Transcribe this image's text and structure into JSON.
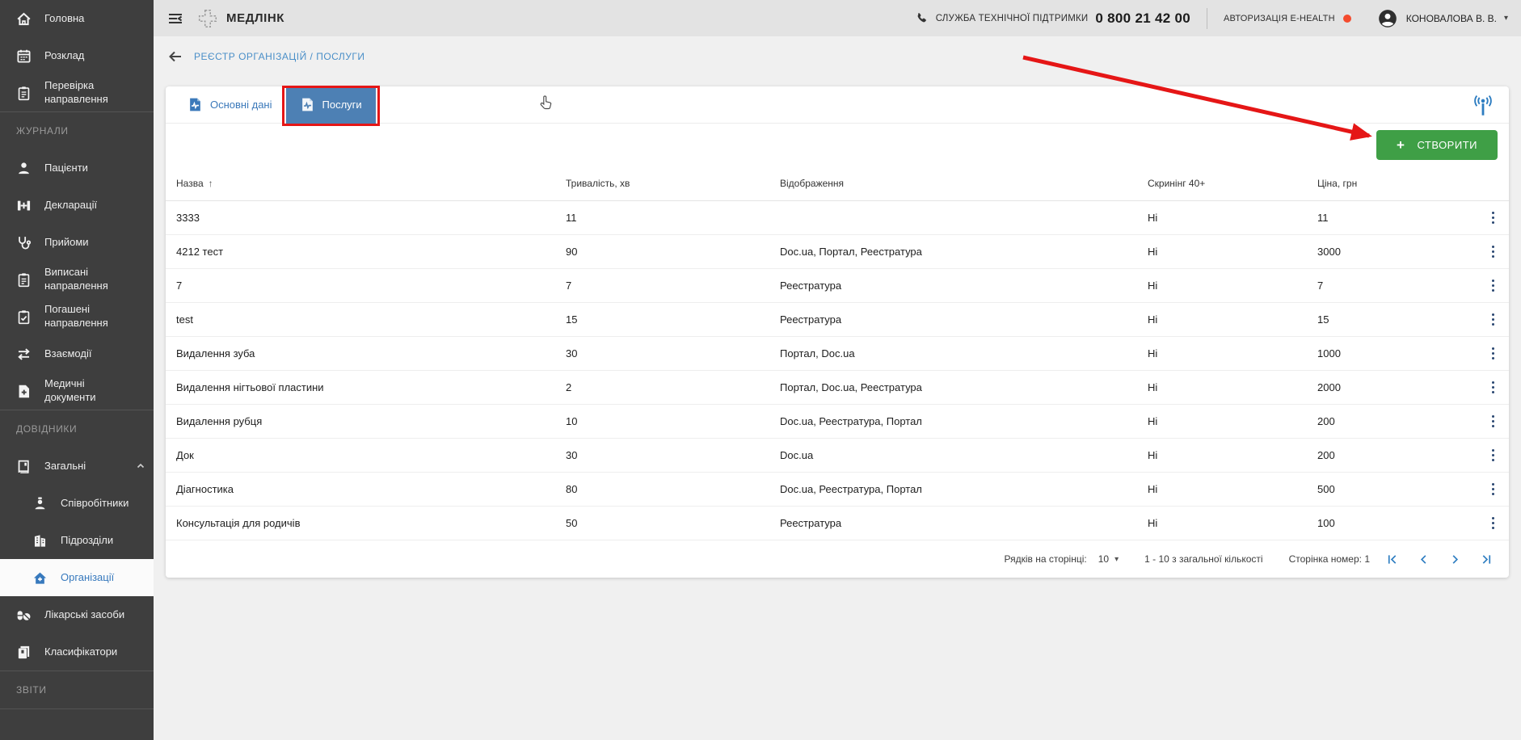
{
  "topbar": {
    "brand": "МЕДЛІНК",
    "support_label": "СЛУЖБА ТЕХНІЧНОЇ ПІДТРИМКИ",
    "support_phone": "0 800 21 42 00",
    "auth_label": "АВТОРИЗАЦІЯ E-HEALTH",
    "user_name": "КОНОВАЛОВА В. В."
  },
  "breadcrumb": "РЕЄСТР ОРГАНІЗАЦІЙ / ПОСЛУГИ",
  "sidebar": {
    "sections": [
      {
        "label": null,
        "items": [
          {
            "id": "home",
            "icon": "home-icon",
            "label": "Головна"
          },
          {
            "id": "schedule",
            "icon": "calendar-icon",
            "label": "Розклад"
          },
          {
            "id": "referral-check",
            "icon": "clipboard-check-icon",
            "label": "Перевірка направлення"
          }
        ]
      },
      {
        "label": "ЖУРНАЛИ",
        "items": [
          {
            "id": "patients",
            "icon": "patient-icon",
            "label": "Пацієнти"
          },
          {
            "id": "declarations",
            "icon": "declaration-icon",
            "label": "Декларації"
          },
          {
            "id": "appointments",
            "icon": "stethoscope-icon",
            "label": "Прийоми"
          },
          {
            "id": "issued-referrals",
            "icon": "clipboard-list-icon",
            "label": "Виписані направлення"
          },
          {
            "id": "redeemed-referrals",
            "icon": "clipboard-done-icon",
            "label": "Погашені направлення"
          },
          {
            "id": "interactions",
            "icon": "arrows-swap-icon",
            "label": "Взаємодії"
          },
          {
            "id": "medical-documents",
            "icon": "document-plus-icon",
            "label": "Медичні документи"
          }
        ]
      },
      {
        "label": "ДОВІДНИКИ",
        "items": [
          {
            "id": "general",
            "icon": "book-icon",
            "label": "Загальні",
            "expanded": true
          },
          {
            "id": "employees",
            "icon": "employee-icon",
            "label": "Співробітники",
            "sub": true
          },
          {
            "id": "departments",
            "icon": "building-icon",
            "label": "Підрозділи",
            "sub": true
          },
          {
            "id": "organizations",
            "icon": "org-home-icon",
            "label": "Організації",
            "sub": true,
            "active": true
          },
          {
            "id": "medications",
            "icon": "pills-icon",
            "label": "Лікарські засоби"
          },
          {
            "id": "classifiers",
            "icon": "books-icon",
            "label": "Класифікатори"
          }
        ]
      },
      {
        "label": "ЗВІТИ",
        "items": []
      }
    ]
  },
  "tabs": [
    {
      "label": "Основні дані",
      "active": false
    },
    {
      "label": "Послуги",
      "active": true
    }
  ],
  "create_button_label": "СТВОРИТИ",
  "table": {
    "columns": [
      "Назва",
      "Тривалість, хв",
      "Відображення",
      "Скринінг 40+",
      "Ціна, грн"
    ],
    "rows": [
      [
        "3333",
        "11",
        "",
        "Ні",
        "11"
      ],
      [
        "4212 тест",
        "90",
        "Doc.ua, Портал, Реестратура",
        "Ні",
        "3000"
      ],
      [
        "7",
        "7",
        "Реестратура",
        "Ні",
        "7"
      ],
      [
        "test",
        "15",
        "Реестратура",
        "Ні",
        "15"
      ],
      [
        "Видалення зуба",
        "30",
        "Портал, Doc.ua",
        "Ні",
        "1000"
      ],
      [
        "Видалення нігтьової пластини",
        "2",
        "Портал, Doc.ua, Реестратура",
        "Ні",
        "2000"
      ],
      [
        "Видалення рубця",
        "10",
        "Doc.ua, Реестратура, Портал",
        "Ні",
        "200"
      ],
      [
        "Док",
        "30",
        "Doc.ua",
        "Ні",
        "200"
      ],
      [
        "Діагностика",
        "80",
        "Doc.ua, Реестратура, Портал",
        "Ні",
        "500"
      ],
      [
        "Консультація для родичів",
        "50",
        "Реестратура",
        "Ні",
        "100"
      ]
    ]
  },
  "pagination": {
    "rows_per_page_label": "Рядків на сторінці:",
    "rows_per_page": "10",
    "range_label": "1 - 10 з загальної кількості",
    "page_label": "Сторінка номер: 1"
  },
  "colors": {
    "accent_blue": "#3b79ba",
    "tab_active_bg": "#4d80b4",
    "create_green": "#3f9f46",
    "annotation_red": "#e51616",
    "sidebar_bg": "#3e3e3e",
    "ehealth_dot": "#f44b2e",
    "pagination_blue": "#2d7dc1",
    "kebab_navy": "#294670"
  }
}
